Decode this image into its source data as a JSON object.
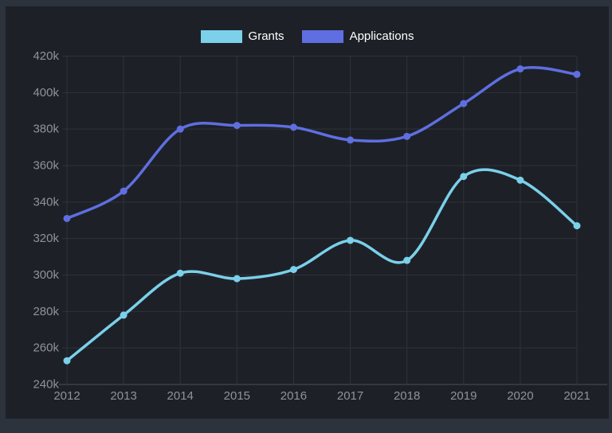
{
  "window": {
    "background_color": "#2d333c",
    "panel_background_color": "#1d2127"
  },
  "legend": {
    "items": [
      {
        "label": "Grants",
        "color": "#7bd0ea"
      },
      {
        "label": "Applications",
        "color": "#5f6ee0"
      }
    ]
  },
  "chart_data": {
    "type": "line",
    "unit": "thousands",
    "categories": [
      "2012",
      "2013",
      "2014",
      "2015",
      "2016",
      "2017",
      "2018",
      "2019",
      "2020",
      "2021"
    ],
    "series": [
      {
        "name": "Grants",
        "color": "#7bd0ea",
        "values": [
          253,
          278,
          301,
          298,
          303,
          319,
          308,
          354,
          352,
          327
        ]
      },
      {
        "name": "Applications",
        "color": "#5f6ee0",
        "values": [
          331,
          346,
          380,
          382,
          381,
          374,
          376,
          394,
          413,
          410
        ]
      }
    ],
    "title": "",
    "xlabel": "",
    "ylabel": "",
    "ylim": [
      240,
      420
    ],
    "y_tick_step": 20,
    "y_tick_labels": [
      "240k",
      "260k",
      "280k",
      "300k",
      "320k",
      "340k",
      "360k",
      "380k",
      "400k",
      "420k"
    ],
    "grid": true,
    "legend_position": "top",
    "line_style": "smooth",
    "point_markers": true,
    "styles": {
      "grid_color": "#2e3339",
      "axis_color": "#4a5159",
      "tick_label_color": "#8d939b",
      "legend_text_color": "#ffffff"
    }
  }
}
